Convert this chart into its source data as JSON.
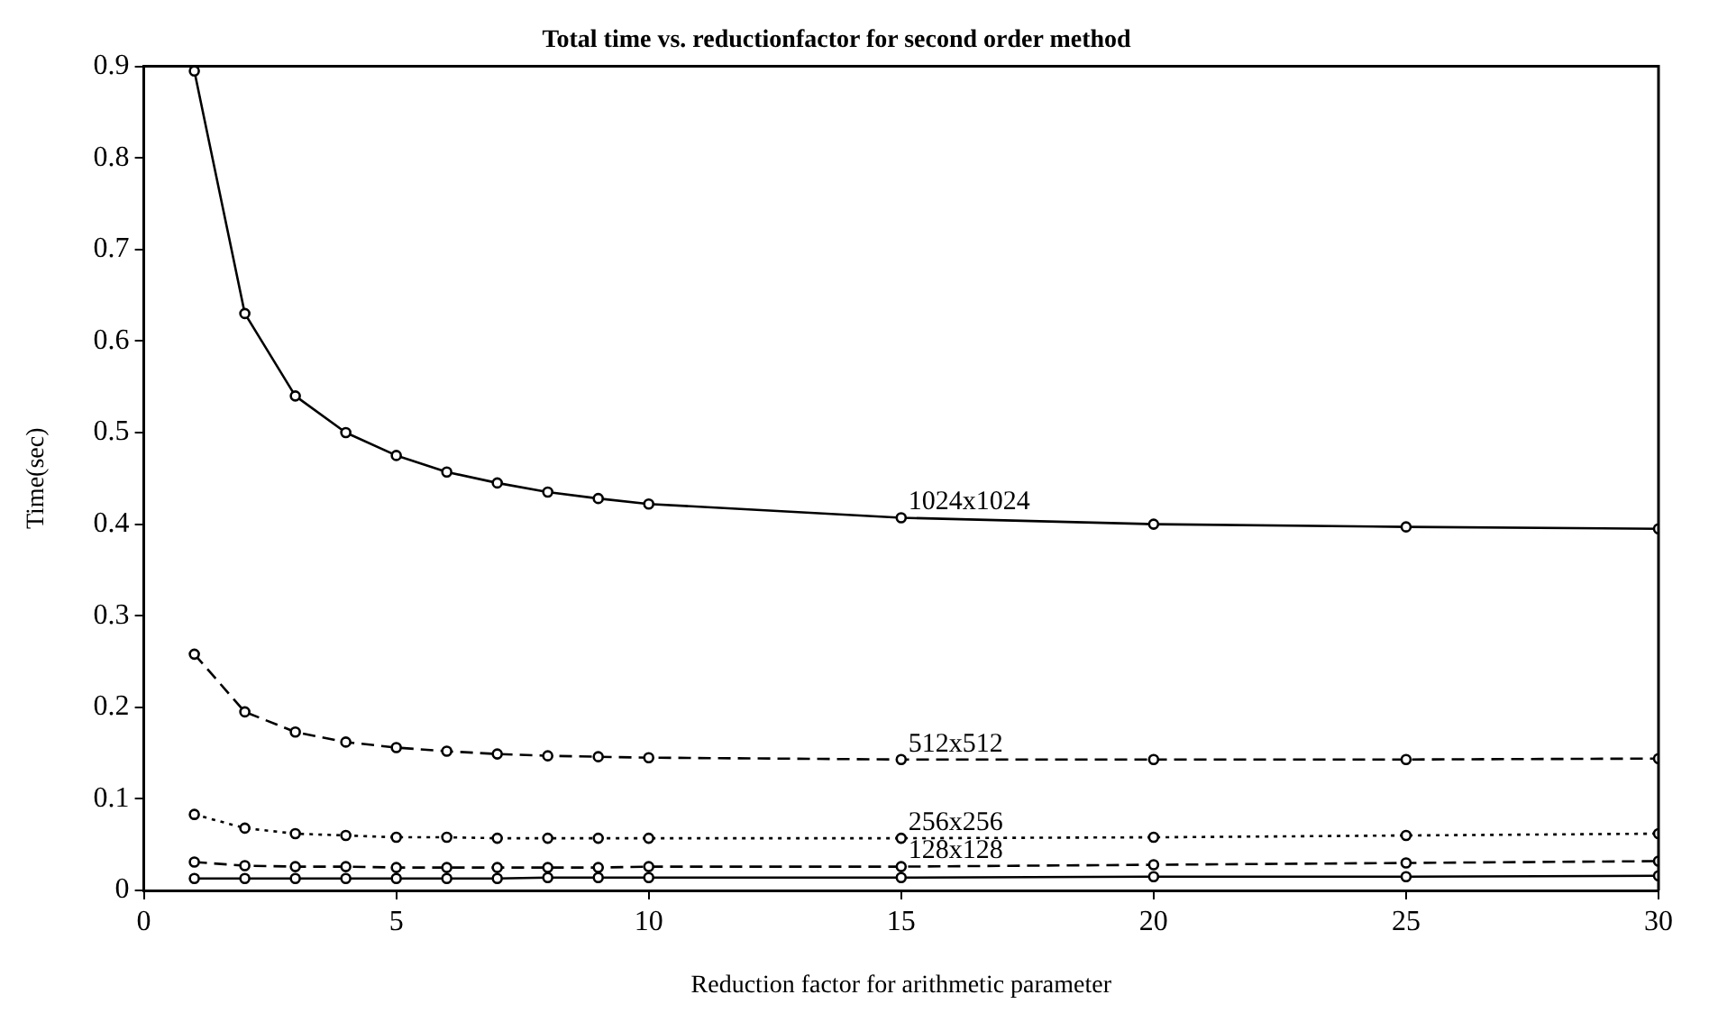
{
  "chart_data": {
    "type": "line",
    "title": "Total time vs. reductionfactor for second order method",
    "xlabel": "Reduction factor for arithmetic parameter",
    "ylabel": "Time(sec)",
    "x": [
      1,
      2,
      3,
      4,
      5,
      6,
      7,
      8,
      9,
      10,
      15,
      20,
      25,
      30
    ],
    "series": [
      {
        "name": "1024x1024",
        "color": "#000000",
        "line_style": "solid",
        "values": [
          0.895,
          0.63,
          0.54,
          0.5,
          0.475,
          0.457,
          0.445,
          0.435,
          0.428,
          0.422,
          0.407,
          0.4,
          0.397,
          0.395
        ]
      },
      {
        "name": "512x512",
        "color": "#000000",
        "line_style": "dashed",
        "values": [
          0.258,
          0.195,
          0.173,
          0.162,
          0.156,
          0.152,
          0.149,
          0.147,
          0.146,
          0.145,
          0.143,
          0.143,
          0.143,
          0.144
        ]
      },
      {
        "name": "256x256",
        "color": "#000000",
        "line_style": "dotted",
        "values": [
          0.083,
          0.068,
          0.062,
          0.06,
          0.058,
          0.058,
          0.057,
          0.057,
          0.057,
          0.057,
          0.057,
          0.058,
          0.06,
          0.062
        ]
      },
      {
        "name": "128x128",
        "color": "#000000",
        "line_style": "dashed",
        "values": [
          0.031,
          0.027,
          0.026,
          0.026,
          0.025,
          0.025,
          0.025,
          0.025,
          0.025,
          0.026,
          0.026,
          0.028,
          0.03,
          0.032
        ]
      },
      {
        "color": "#000000",
        "line_style": "solid",
        "values": [
          0.013,
          0.013,
          0.013,
          0.013,
          0.013,
          0.013,
          0.013,
          0.014,
          0.014,
          0.014,
          0.014,
          0.015,
          0.015,
          0.016
        ]
      }
    ],
    "marker": "circle",
    "xlim": [
      0,
      30
    ],
    "xticks": [
      0,
      5,
      10,
      15,
      20,
      25,
      30
    ],
    "ylim": [
      0,
      0.9
    ],
    "yticks": [
      0,
      0.1,
      0.2,
      0.3,
      0.4,
      0.5,
      0.6,
      0.7,
      0.8,
      0.9
    ],
    "grid": false,
    "legend": false
  }
}
